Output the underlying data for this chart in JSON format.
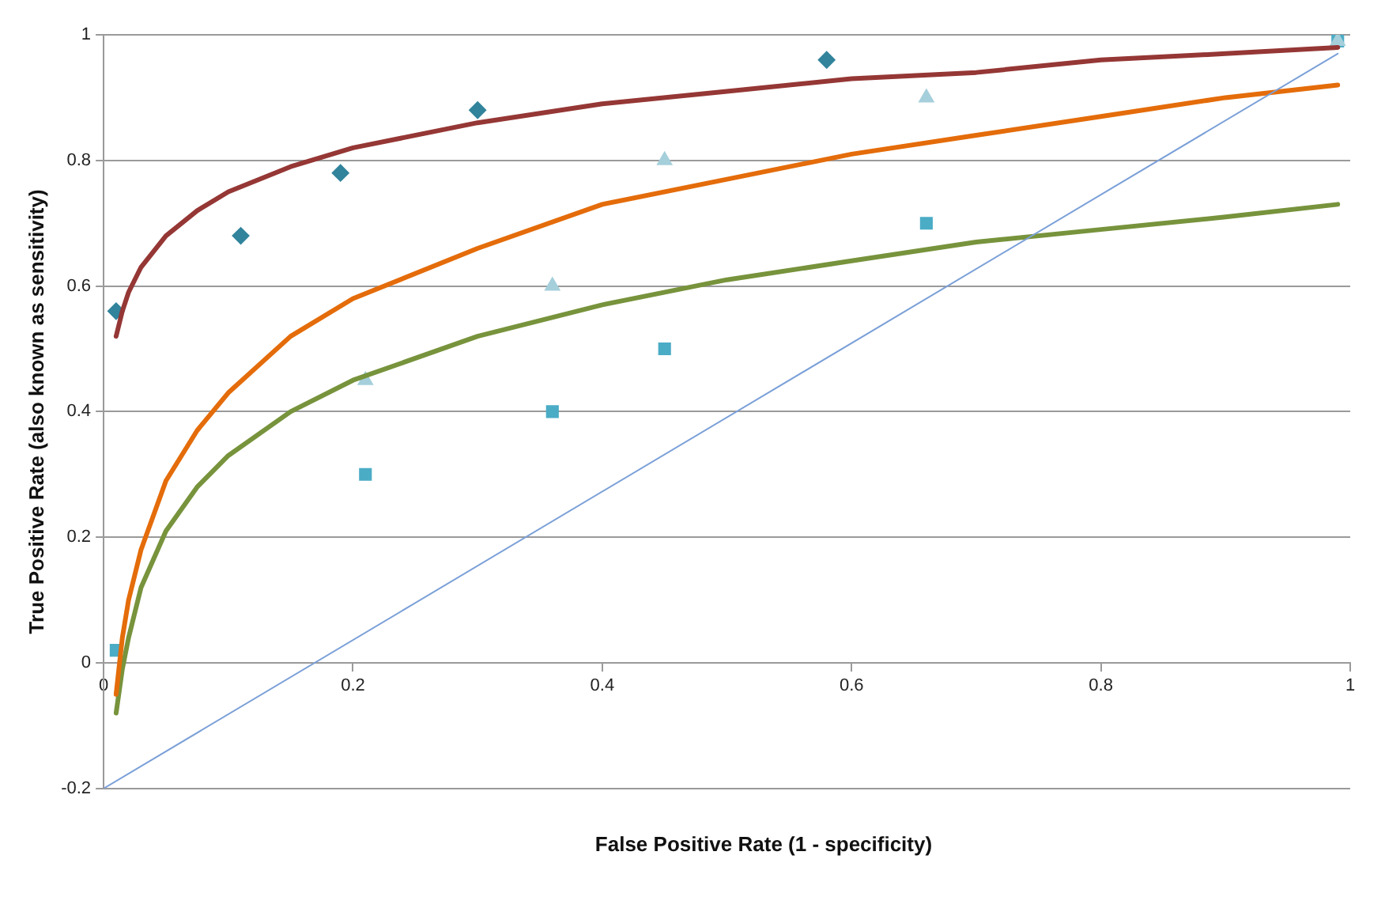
{
  "chart_data": {
    "type": "scatter",
    "xlabel": "False Positive Rate (1 - specificity)",
    "ylabel": "True Positive Rate (also known as sensitivity)",
    "xlim": [
      0,
      1
    ],
    "ylim": [
      -0.2,
      1
    ],
    "xticks": [
      0,
      0.2,
      0.4,
      0.6,
      0.8,
      1
    ],
    "yticks": [
      -0.2,
      0,
      0.2,
      0.4,
      0.6,
      0.8,
      1
    ],
    "grid": "y",
    "legend": false,
    "series": [
      {
        "type": "line",
        "marker": "none",
        "color": "#7ba0d8",
        "x": [
          0,
          0.99
        ],
        "values": [
          -0.2,
          0.97
        ]
      },
      {
        "type": "line",
        "marker": "none",
        "color": "#953735",
        "x": [
          0.01,
          0.015,
          0.02,
          0.03,
          0.05,
          0.075,
          0.1,
          0.15,
          0.2,
          0.3,
          0.4,
          0.5,
          0.6,
          0.7,
          0.8,
          0.9,
          0.99
        ],
        "values": [
          0.52,
          0.56,
          0.59,
          0.63,
          0.68,
          0.72,
          0.75,
          0.79,
          0.82,
          0.86,
          0.89,
          0.91,
          0.93,
          0.94,
          0.96,
          0.97,
          0.98
        ]
      },
      {
        "type": "line",
        "marker": "none",
        "color": "#e46c0a",
        "x": [
          0.01,
          0.015,
          0.02,
          0.03,
          0.05,
          0.075,
          0.1,
          0.15,
          0.2,
          0.3,
          0.4,
          0.5,
          0.6,
          0.7,
          0.8,
          0.9,
          0.99
        ],
        "values": [
          -0.05,
          0.04,
          0.1,
          0.18,
          0.29,
          0.37,
          0.43,
          0.52,
          0.58,
          0.66,
          0.73,
          0.77,
          0.81,
          0.84,
          0.87,
          0.9,
          0.92
        ]
      },
      {
        "type": "line",
        "marker": "none",
        "color": "#77933c",
        "x": [
          0.01,
          0.015,
          0.02,
          0.03,
          0.05,
          0.075,
          0.1,
          0.15,
          0.2,
          0.3,
          0.4,
          0.5,
          0.6,
          0.7,
          0.8,
          0.9,
          0.99
        ],
        "values": [
          -0.08,
          -0.01,
          0.04,
          0.12,
          0.21,
          0.28,
          0.33,
          0.4,
          0.45,
          0.52,
          0.57,
          0.61,
          0.64,
          0.67,
          0.69,
          0.71,
          0.73
        ]
      },
      {
        "marker": "diamond",
        "color": "#31849b",
        "x": [
          0.01,
          0.11,
          0.19,
          0.3,
          0.58
        ],
        "values": [
          0.56,
          0.68,
          0.78,
          0.88,
          0.96
        ]
      },
      {
        "marker": "triangle",
        "color": "#a5cfdb",
        "x": [
          0.21,
          0.36,
          0.45,
          0.66,
          0.99
        ],
        "values": [
          0.45,
          0.6,
          0.8,
          0.9,
          0.99
        ]
      },
      {
        "marker": "square",
        "color": "#4bacc6",
        "x": [
          0.01,
          0.21,
          0.36,
          0.45,
          0.66,
          0.99
        ],
        "values": [
          0.02,
          0.3,
          0.4,
          0.5,
          0.7,
          0.99
        ]
      }
    ]
  }
}
